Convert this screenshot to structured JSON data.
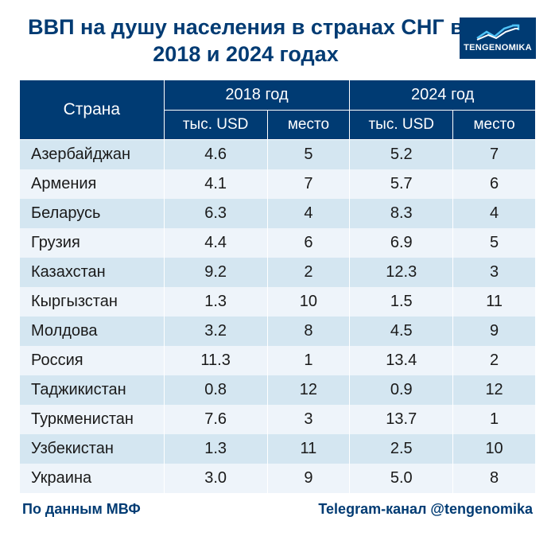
{
  "title": "ВВП на душу населения в странах СНГ в 2018 и 2024 годах",
  "logo_text": "TENGENOMIKA",
  "colors": {
    "header_bg": "#003b73",
    "header_text": "#ffffff",
    "row_odd": "#d4e6f1",
    "row_even": "#eef4fa",
    "title_color": "#003b73",
    "footer_color": "#003b73"
  },
  "table": {
    "header_country": "Страна",
    "header_year1": "2018 год",
    "header_year2": "2024 год",
    "sub_usd": "тыс. USD",
    "sub_rank": "место",
    "rows": [
      {
        "country": "Азербайджан",
        "usd1": "4.6",
        "rank1": "5",
        "usd2": "5.2",
        "rank2": "7"
      },
      {
        "country": "Армения",
        "usd1": "4.1",
        "rank1": "7",
        "usd2": "5.7",
        "rank2": "6"
      },
      {
        "country": "Беларусь",
        "usd1": "6.3",
        "rank1": "4",
        "usd2": "8.3",
        "rank2": "4"
      },
      {
        "country": "Грузия",
        "usd1": "4.4",
        "rank1": "6",
        "usd2": "6.9",
        "rank2": "5"
      },
      {
        "country": "Казахстан",
        "usd1": "9.2",
        "rank1": "2",
        "usd2": "12.3",
        "rank2": "3"
      },
      {
        "country": "Кыргызстан",
        "usd1": "1.3",
        "rank1": "10",
        "usd2": "1.5",
        "rank2": "11"
      },
      {
        "country": "Молдова",
        "usd1": "3.2",
        "rank1": "8",
        "usd2": "4.5",
        "rank2": "9"
      },
      {
        "country": "Россия",
        "usd1": "11.3",
        "rank1": "1",
        "usd2": "13.4",
        "rank2": "2"
      },
      {
        "country": "Таджикистан",
        "usd1": "0.8",
        "rank1": "12",
        "usd2": "0.9",
        "rank2": "12"
      },
      {
        "country": "Туркменистан",
        "usd1": "7.6",
        "rank1": "3",
        "usd2": "13.7",
        "rank2": "1"
      },
      {
        "country": "Узбекистан",
        "usd1": "1.3",
        "rank1": "11",
        "usd2": "2.5",
        "rank2": "10"
      },
      {
        "country": "Украина",
        "usd1": "3.0",
        "rank1": "9",
        "usd2": "5.0",
        "rank2": "8"
      }
    ]
  },
  "footer_left": "По данным МВФ",
  "footer_right": "Telegram-канал @tengenomika"
}
